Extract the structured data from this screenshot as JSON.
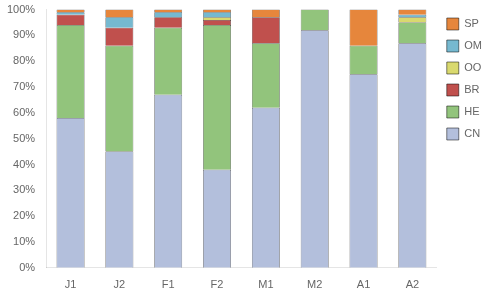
{
  "chart_data": {
    "type": "bar",
    "stacked": true,
    "grid": false,
    "legend": "right",
    "categories": [
      "J1",
      "J2",
      "F1",
      "F2",
      "M1",
      "M2",
      "A1",
      "A2"
    ],
    "series": [
      {
        "name": "CN",
        "color": "#b3bfdc",
        "values": [
          58,
          45,
          67,
          38,
          62,
          92,
          75,
          87
        ]
      },
      {
        "name": "HE",
        "color": "#92c47c",
        "values": [
          36,
          41,
          26,
          56,
          25,
          8,
          11,
          8
        ]
      },
      {
        "name": "BR",
        "color": "#c0504d",
        "values": [
          4,
          7,
          4,
          2,
          10,
          0,
          0,
          0
        ]
      },
      {
        "name": "OO",
        "color": "#d9d96e",
        "values": [
          0,
          0,
          0,
          1,
          0,
          0,
          0,
          2
        ]
      },
      {
        "name": "OM",
        "color": "#76b9d0",
        "values": [
          1,
          4,
          2,
          2,
          0,
          0,
          0,
          1
        ]
      },
      {
        "name": "SP",
        "color": "#e6863c",
        "values": [
          1,
          3,
          1,
          1,
          3,
          0,
          14,
          2
        ]
      }
    ],
    "ylim": [
      0,
      100
    ],
    "yticks": [
      {
        "value": 0,
        "label": "0%"
      },
      {
        "value": 10,
        "label": "10%"
      },
      {
        "value": 20,
        "label": "20%"
      },
      {
        "value": 30,
        "label": "30%"
      },
      {
        "value": 40,
        "label": "40%"
      },
      {
        "value": 50,
        "label": "50%"
      },
      {
        "value": 60,
        "label": "60%"
      },
      {
        "value": 70,
        "label": "70%"
      },
      {
        "value": 80,
        "label": "80%"
      },
      {
        "value": 90,
        "label": "90%"
      },
      {
        "value": 100,
        "label": "100%"
      }
    ]
  }
}
